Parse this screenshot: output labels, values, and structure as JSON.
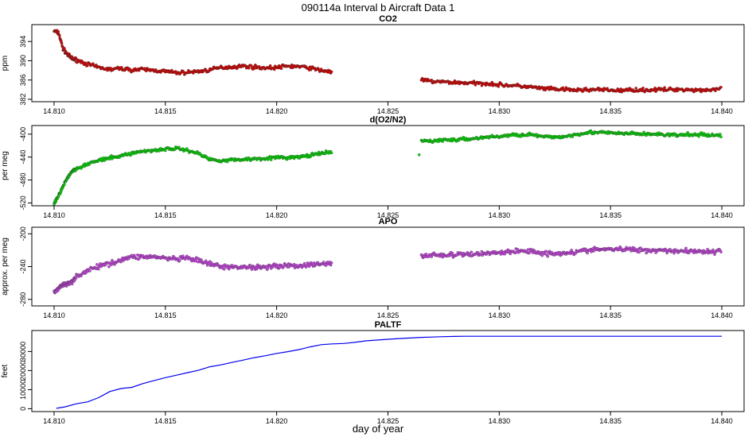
{
  "figure_title": "090114a   Interval b Aircraft Data 1",
  "xlabel": "day of year",
  "x_ticks": [
    "14.810",
    "14.815",
    "14.820",
    "14.825",
    "14.830",
    "14.835",
    "14.840"
  ],
  "chart_data": [
    {
      "type": "scatter",
      "title": "CO2",
      "ylabel": "ppm",
      "color": "#e00000",
      "xlim": [
        14.809,
        14.841
      ],
      "ylim": [
        381.5,
        397.5
      ],
      "y_ticks": [
        382,
        386,
        390,
        394
      ],
      "points": [
        [
          14.81,
          396.2
        ],
        [
          14.8102,
          395.8
        ],
        [
          14.8104,
          392.5
        ],
        [
          14.8106,
          391.3
        ],
        [
          14.8108,
          390.5
        ],
        [
          14.811,
          390.2
        ],
        [
          14.8115,
          389.3
        ],
        [
          14.812,
          388.6
        ],
        [
          14.8125,
          388.2
        ],
        [
          14.813,
          388.4
        ],
        [
          14.8135,
          388.1
        ],
        [
          14.814,
          388.2
        ],
        [
          14.8145,
          388.0
        ],
        [
          14.815,
          387.8
        ],
        [
          14.8155,
          387.5
        ],
        [
          14.816,
          387.6
        ],
        [
          14.8165,
          387.8
        ],
        [
          14.817,
          388.1
        ],
        [
          14.8175,
          388.6
        ],
        [
          14.818,
          388.7
        ],
        [
          14.8185,
          388.9
        ],
        [
          14.819,
          388.7
        ],
        [
          14.8195,
          388.5
        ],
        [
          14.82,
          388.6
        ],
        [
          14.8205,
          388.9
        ],
        [
          14.821,
          388.8
        ],
        [
          14.8215,
          388.5
        ],
        [
          14.822,
          388.0
        ],
        [
          14.8225,
          387.7
        ],
        [
          14.8265,
          386.0
        ],
        [
          14.827,
          385.7
        ],
        [
          14.8275,
          385.6
        ],
        [
          14.828,
          385.5
        ],
        [
          14.8285,
          385.4
        ],
        [
          14.829,
          385.3
        ],
        [
          14.8295,
          385.3
        ],
        [
          14.83,
          385.0
        ],
        [
          14.8305,
          384.9
        ],
        [
          14.831,
          384.7
        ],
        [
          14.8315,
          384.5
        ],
        [
          14.832,
          384.2
        ],
        [
          14.8325,
          384.1
        ],
        [
          14.833,
          384.0
        ],
        [
          14.8335,
          383.9
        ],
        [
          14.834,
          384.0
        ],
        [
          14.8345,
          384.0
        ],
        [
          14.835,
          383.9
        ],
        [
          14.8355,
          383.8
        ],
        [
          14.836,
          384.0
        ],
        [
          14.8365,
          383.9
        ],
        [
          14.837,
          384.0
        ],
        [
          14.8375,
          384.0
        ],
        [
          14.838,
          384.1
        ],
        [
          14.8385,
          384.0
        ],
        [
          14.839,
          383.9
        ],
        [
          14.8395,
          384.0
        ],
        [
          14.84,
          384.2
        ]
      ]
    },
    {
      "type": "scatter",
      "title": "d(O2/N2)",
      "ylabel": "per meg",
      "color": "#00e000",
      "xlim": [
        14.809,
        14.841
      ],
      "ylim": [
        -525,
        -385
      ],
      "y_ticks": [
        -400,
        -440,
        -480,
        -520
      ],
      "points": [
        [
          14.81,
          -522
        ],
        [
          14.8102,
          -508
        ],
        [
          14.8104,
          -492
        ],
        [
          14.8106,
          -476
        ],
        [
          14.8108,
          -465
        ],
        [
          14.811,
          -460
        ],
        [
          14.8115,
          -452
        ],
        [
          14.812,
          -446
        ],
        [
          14.8125,
          -442
        ],
        [
          14.813,
          -438
        ],
        [
          14.8135,
          -433
        ],
        [
          14.814,
          -430
        ],
        [
          14.8145,
          -428
        ],
        [
          14.815,
          -426
        ],
        [
          14.8155,
          -425
        ],
        [
          14.816,
          -428
        ],
        [
          14.8165,
          -434
        ],
        [
          14.817,
          -444
        ],
        [
          14.8175,
          -446
        ],
        [
          14.818,
          -445
        ],
        [
          14.8185,
          -444
        ],
        [
          14.819,
          -443
        ],
        [
          14.8195,
          -442
        ],
        [
          14.82,
          -441
        ],
        [
          14.8205,
          -441
        ],
        [
          14.821,
          -440
        ],
        [
          14.8215,
          -437
        ],
        [
          14.822,
          -434
        ],
        [
          14.8225,
          -431
        ],
        [
          14.8265,
          -412
        ],
        [
          14.827,
          -412
        ],
        [
          14.8275,
          -410
        ],
        [
          14.828,
          -410
        ],
        [
          14.8285,
          -409
        ],
        [
          14.829,
          -407
        ],
        [
          14.8295,
          -405
        ],
        [
          14.83,
          -404
        ],
        [
          14.8305,
          -402
        ],
        [
          14.831,
          -401
        ],
        [
          14.8315,
          -401
        ],
        [
          14.832,
          -405
        ],
        [
          14.8325,
          -405
        ],
        [
          14.833,
          -404
        ],
        [
          14.8335,
          -400
        ],
        [
          14.834,
          -397
        ],
        [
          14.8345,
          -397
        ],
        [
          14.835,
          -398
        ],
        [
          14.8355,
          -399
        ],
        [
          14.836,
          -399
        ],
        [
          14.8365,
          -400
        ],
        [
          14.837,
          -400
        ],
        [
          14.8375,
          -401
        ],
        [
          14.838,
          -402
        ],
        [
          14.8385,
          -401
        ],
        [
          14.839,
          -401
        ],
        [
          14.8395,
          -402
        ],
        [
          14.84,
          -402
        ]
      ]
    },
    {
      "type": "scatter",
      "title": "APO",
      "ylabel": "approx. per meg",
      "color": "#cc44e6",
      "xlim": [
        14.809,
        14.841
      ],
      "ylim": [
        -288,
        -192
      ],
      "y_ticks": [
        -200,
        -240,
        -280
      ],
      "points": [
        [
          14.81,
          -272
        ],
        [
          14.8102,
          -266
        ],
        [
          14.8104,
          -262
        ],
        [
          14.8106,
          -262
        ],
        [
          14.8108,
          -258
        ],
        [
          14.811,
          -252
        ],
        [
          14.8115,
          -245
        ],
        [
          14.812,
          -240
        ],
        [
          14.8125,
          -236
        ],
        [
          14.813,
          -232
        ],
        [
          14.8135,
          -228
        ],
        [
          14.814,
          -228
        ],
        [
          14.8145,
          -228
        ],
        [
          14.815,
          -230
        ],
        [
          14.8155,
          -231
        ],
        [
          14.816,
          -230
        ],
        [
          14.8165,
          -233
        ],
        [
          14.817,
          -237
        ],
        [
          14.8175,
          -240
        ],
        [
          14.818,
          -241
        ],
        [
          14.8185,
          -240
        ],
        [
          14.819,
          -241
        ],
        [
          14.8195,
          -240
        ],
        [
          14.82,
          -239
        ],
        [
          14.8205,
          -239
        ],
        [
          14.821,
          -239
        ],
        [
          14.8215,
          -238
        ],
        [
          14.822,
          -237
        ],
        [
          14.8225,
          -236
        ],
        [
          14.8265,
          -227
        ],
        [
          14.827,
          -226
        ],
        [
          14.8275,
          -226
        ],
        [
          14.828,
          -226
        ],
        [
          14.8285,
          -225
        ],
        [
          14.829,
          -225
        ],
        [
          14.8295,
          -223
        ],
        [
          14.83,
          -223
        ],
        [
          14.8305,
          -222
        ],
        [
          14.831,
          -221
        ],
        [
          14.8315,
          -221
        ],
        [
          14.832,
          -224
        ],
        [
          14.8325,
          -224
        ],
        [
          14.833,
          -223
        ],
        [
          14.8335,
          -222
        ],
        [
          14.834,
          -220
        ],
        [
          14.8345,
          -219
        ],
        [
          14.835,
          -219
        ],
        [
          14.8355,
          -219
        ],
        [
          14.836,
          -219
        ],
        [
          14.8365,
          -220
        ],
        [
          14.837,
          -220
        ],
        [
          14.8375,
          -220
        ],
        [
          14.838,
          -221
        ],
        [
          14.8385,
          -221
        ],
        [
          14.839,
          -221
        ],
        [
          14.8395,
          -222
        ],
        [
          14.84,
          -222
        ]
      ]
    },
    {
      "type": "line",
      "title": "PALTF",
      "ylabel": "feet",
      "color": "#0000ee",
      "xlim": [
        14.809,
        14.841
      ],
      "ylim": [
        -1500,
        41000
      ],
      "y_ticks": [
        0,
        10000,
        20000,
        30000
      ],
      "points": [
        [
          14.8101,
          200
        ],
        [
          14.8105,
          1000
        ],
        [
          14.811,
          2600
        ],
        [
          14.8115,
          3600
        ],
        [
          14.812,
          5800
        ],
        [
          14.8125,
          9000
        ],
        [
          14.813,
          10600
        ],
        [
          14.8135,
          11200
        ],
        [
          14.814,
          13200
        ],
        [
          14.8145,
          14800
        ],
        [
          14.815,
          16300
        ],
        [
          14.8155,
          17600
        ],
        [
          14.816,
          18900
        ],
        [
          14.8165,
          20200
        ],
        [
          14.817,
          22000
        ],
        [
          14.8175,
          23000
        ],
        [
          14.818,
          24300
        ],
        [
          14.8185,
          25500
        ],
        [
          14.819,
          26800
        ],
        [
          14.8195,
          27800
        ],
        [
          14.82,
          29000
        ],
        [
          14.8205,
          29900
        ],
        [
          14.821,
          31000
        ],
        [
          14.8215,
          32400
        ],
        [
          14.822,
          33600
        ],
        [
          14.8225,
          34000
        ],
        [
          14.823,
          34200
        ],
        [
          14.8235,
          34800
        ],
        [
          14.824,
          35600
        ],
        [
          14.8245,
          36000
        ],
        [
          14.825,
          36400
        ],
        [
          14.8255,
          36800
        ],
        [
          14.826,
          37100
        ],
        [
          14.8265,
          37400
        ],
        [
          14.827,
          37600
        ],
        [
          14.8275,
          37800
        ],
        [
          14.828,
          37900
        ],
        [
          14.8285,
          38000
        ],
        [
          14.829,
          38000
        ],
        [
          14.83,
          38000
        ],
        [
          14.832,
          38000
        ],
        [
          14.834,
          38000
        ],
        [
          14.836,
          38000
        ],
        [
          14.838,
          38000
        ],
        [
          14.84,
          38000
        ]
      ]
    }
  ]
}
